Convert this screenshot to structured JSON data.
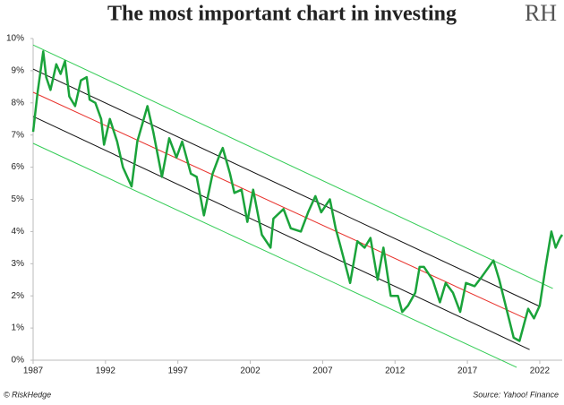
{
  "chart_data": {
    "type": "line",
    "title": "The most important chart in investing",
    "logo": "RH",
    "footer_left": "© RiskHedge",
    "footer_right": "Source: Yahoo! Finance",
    "xlim": [
      1987,
      2023.55
    ],
    "xticks": [
      1987,
      1992,
      1997,
      2002,
      2007,
      2012,
      2017,
      2022
    ],
    "ylim": [
      0,
      10
    ],
    "yticks": [
      {
        "value": 0,
        "label": "0%"
      },
      {
        "value": 1,
        "label": "1%"
      },
      {
        "value": 2,
        "label": "2%"
      },
      {
        "value": 3,
        "label": "3%"
      },
      {
        "value": 4,
        "label": "4%"
      },
      {
        "value": 5,
        "label": "5%"
      },
      {
        "value": 6,
        "label": "6%"
      },
      {
        "value": 7,
        "label": "7%"
      },
      {
        "value": 8,
        "label": "8%"
      },
      {
        "value": 9,
        "label": "9%"
      },
      {
        "value": 10,
        "label": "10%"
      }
    ],
    "grid": false,
    "x": [
      1987.0,
      1987.3,
      1987.7,
      1987.9,
      1988.2,
      1988.6,
      1988.9,
      1989.2,
      1989.5,
      1989.9,
      1990.3,
      1990.7,
      1990.9,
      1991.3,
      1991.7,
      1991.9,
      1992.3,
      1992.8,
      1993.2,
      1993.8,
      1994.2,
      1994.9,
      1995.3,
      1995.9,
      1996.4,
      1996.9,
      1997.3,
      1997.9,
      1998.3,
      1998.8,
      1999.4,
      1999.9,
      2000.1,
      2000.6,
      2000.9,
      2001.4,
      2001.8,
      2002.2,
      2002.8,
      2003.4,
      2003.6,
      2004.3,
      2004.8,
      2005.5,
      2006.0,
      2006.5,
      2006.9,
      2007.5,
      2007.9,
      2008.2,
      2008.9,
      2009.4,
      2009.9,
      2010.3,
      2010.8,
      2011.2,
      2011.7,
      2012.2,
      2012.5,
      2012.9,
      2013.4,
      2013.7,
      2014.0,
      2014.6,
      2015.1,
      2015.5,
      2016.0,
      2016.5,
      2016.9,
      2017.5,
      2018.0,
      2018.8,
      2019.2,
      2019.7,
      2020.2,
      2020.6,
      2021.2,
      2021.6,
      2022.0,
      2022.4,
      2022.8,
      2023.1,
      2023.4,
      2023.55
    ],
    "series": [
      {
        "color": "#1aa33a",
        "values": [
          7.1,
          8.3,
          9.6,
          8.8,
          8.4,
          9.2,
          8.9,
          9.3,
          8.2,
          7.9,
          8.7,
          8.8,
          8.1,
          8.0,
          7.5,
          6.7,
          7.5,
          6.8,
          6.0,
          5.4,
          6.8,
          7.9,
          7.1,
          5.7,
          6.9,
          6.3,
          6.8,
          5.8,
          5.7,
          4.5,
          5.8,
          6.4,
          6.6,
          5.8,
          5.2,
          5.3,
          4.3,
          5.3,
          3.9,
          3.5,
          4.4,
          4.7,
          4.1,
          4.0,
          4.6,
          5.1,
          4.6,
          5.0,
          4.1,
          3.6,
          2.4,
          3.7,
          3.5,
          3.8,
          2.5,
          3.5,
          2.0,
          2.0,
          1.5,
          1.7,
          2.1,
          2.9,
          2.9,
          2.5,
          1.8,
          2.4,
          2.1,
          1.5,
          2.4,
          2.3,
          2.6,
          3.1,
          2.5,
          1.6,
          0.7,
          0.6,
          1.6,
          1.3,
          1.7,
          2.9,
          4.0,
          3.5,
          3.8,
          3.9
        ]
      }
    ],
    "trend_lines": [
      {
        "color": "#33cc55",
        "x": [
          1987,
          2022.9
        ],
        "values": [
          9.8,
          2.23
        ]
      },
      {
        "color": "#111111",
        "x": [
          1987,
          2022
        ],
        "values": [
          9.05,
          1.67
        ]
      },
      {
        "color": "#e8302a",
        "x": [
          1987,
          2021
        ],
        "values": [
          8.33,
          1.3
        ]
      },
      {
        "color": "#111111",
        "x": [
          1987,
          2021.3
        ],
        "values": [
          7.58,
          0.33
        ]
      },
      {
        "color": "#33cc55",
        "x": [
          1987,
          2020.4
        ],
        "values": [
          6.74,
          -0.22
        ]
      }
    ]
  }
}
